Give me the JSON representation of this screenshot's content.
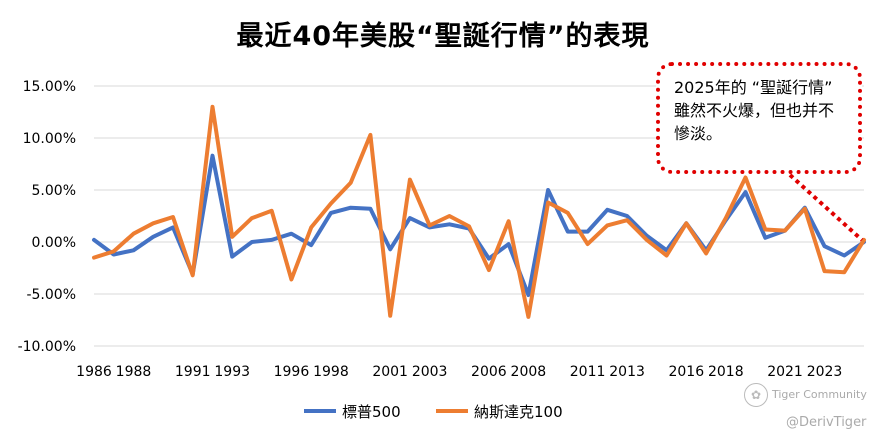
{
  "chart_data": {
    "type": "line",
    "title": "最近40年美股“聖誕行情”的表現",
    "ylim": [
      -10,
      15
    ],
    "y_ticks": [
      "15.00%",
      "10.00%",
      "5.00%",
      "0.00%",
      "-5.00%",
      "-10.00%"
    ],
    "y_tick_values": [
      15,
      10,
      5,
      0,
      -5,
      -10
    ],
    "x_tick_labels": [
      "1986",
      "1988",
      "1991",
      "1993",
      "1996",
      "1998",
      "2001",
      "2003",
      "2006",
      "2008",
      "2011",
      "2013",
      "2016",
      "2018",
      "2021",
      "2023"
    ],
    "x_tick_index": [
      0,
      2,
      5,
      7,
      10,
      12,
      15,
      17,
      20,
      22,
      25,
      27,
      30,
      32,
      35,
      37
    ],
    "series": [
      {
        "name": "標普500",
        "color": "#4472C4",
        "values": [
          0.2,
          -1.2,
          -0.8,
          0.5,
          1.4,
          -3.1,
          8.3,
          -1.4,
          0.0,
          0.2,
          0.8,
          -0.3,
          2.8,
          3.3,
          3.2,
          -0.7,
          2.3,
          1.4,
          1.7,
          1.3,
          -1.6,
          -0.2,
          -5.1,
          5.0,
          1.0,
          1.0,
          3.1,
          2.5,
          0.6,
          -0.8,
          1.8,
          -0.8,
          2.1,
          4.8,
          0.4,
          1.1,
          3.3,
          -0.4,
          -1.3,
          0.0
        ]
      },
      {
        "name": "納斯達克100",
        "color": "#ED7D31",
        "values": [
          -1.5,
          -0.9,
          0.8,
          1.8,
          2.4,
          -3.2,
          13.0,
          0.5,
          2.3,
          3.0,
          -3.6,
          1.4,
          3.7,
          5.7,
          10.3,
          -7.1,
          6.0,
          1.6,
          2.5,
          1.5,
          -2.7,
          2.0,
          -7.2,
          3.8,
          2.8,
          -0.2,
          1.6,
          2.1,
          0.2,
          -1.3,
          1.8,
          -1.1,
          2.3,
          6.2,
          1.2,
          1.1,
          3.2,
          -2.8,
          -2.9,
          0.2
        ]
      }
    ]
  },
  "callout": {
    "text": "2025年的 “聖誕行情” 雖然不火爆，但也并不慘淡。"
  },
  "watermark": {
    "community": "Tiger Community",
    "handle": "@DerivTiger"
  }
}
